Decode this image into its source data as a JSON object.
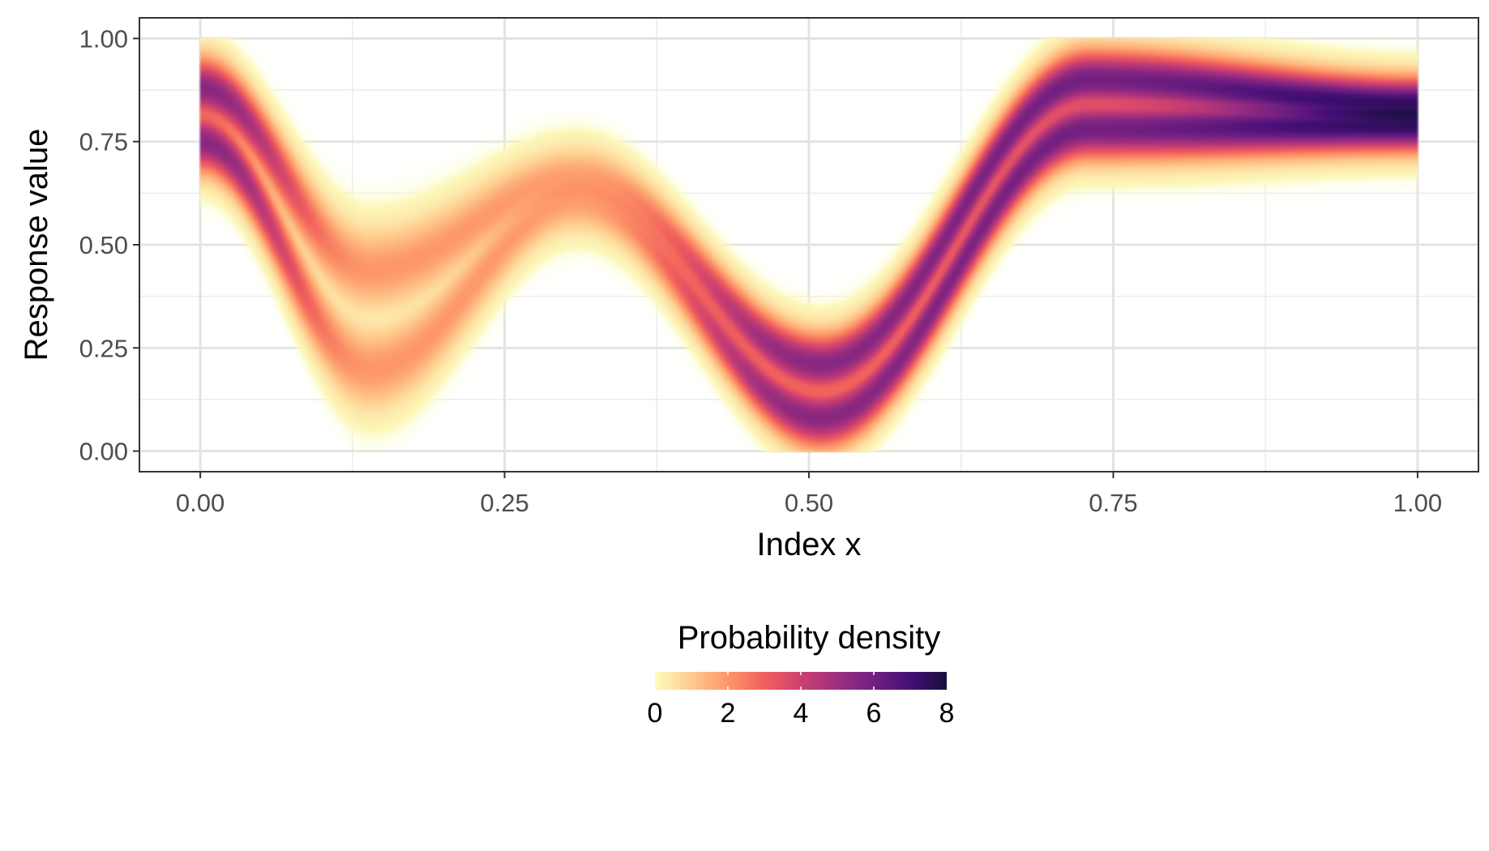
{
  "chart_data": {
    "type": "heatmap",
    "title": "",
    "xlabel": "Index x",
    "ylabel": "Response value",
    "xlim": [
      -0.05,
      1.05
    ],
    "ylim": [
      -0.05,
      1.05
    ],
    "x_ticks": [
      "0.00",
      "0.25",
      "0.50",
      "0.75",
      "1.00"
    ],
    "y_ticks": [
      "0.00",
      "0.25",
      "0.50",
      "0.75",
      "1.00"
    ],
    "x_tick_values": [
      0,
      0.25,
      0.5,
      0.75,
      1.0
    ],
    "y_tick_values": [
      0,
      0.25,
      0.5,
      0.75,
      1.0
    ],
    "grid": true,
    "legend": {
      "title": "Probability density",
      "position": "bottom",
      "range": [
        0,
        8
      ],
      "ticks": [
        "0",
        "2",
        "4",
        "6",
        "8"
      ],
      "tick_values": [
        0,
        2,
        4,
        6,
        8
      ],
      "colormap": [
        "#fcfdbf",
        "#feca8d",
        "#fd9668",
        "#f1605d",
        "#cd4071",
        "#9e2f7f",
        "#721f81",
        "#440f76",
        "#180f3d"
      ]
    },
    "density_ridges": {
      "description": "Density of response value along index x, shown as a bimodal band",
      "x": [
        0.0,
        0.14,
        0.31,
        0.51,
        0.73,
        1.0
      ],
      "upper_mode_y": [
        0.88,
        0.44,
        0.66,
        0.21,
        0.9,
        0.84
      ],
      "lower_mode_y": [
        0.75,
        0.2,
        0.61,
        0.08,
        0.78,
        0.79
      ],
      "peak_density": [
        5.5,
        2.0,
        1.9,
        5.5,
        6.0,
        7.5
      ]
    }
  }
}
